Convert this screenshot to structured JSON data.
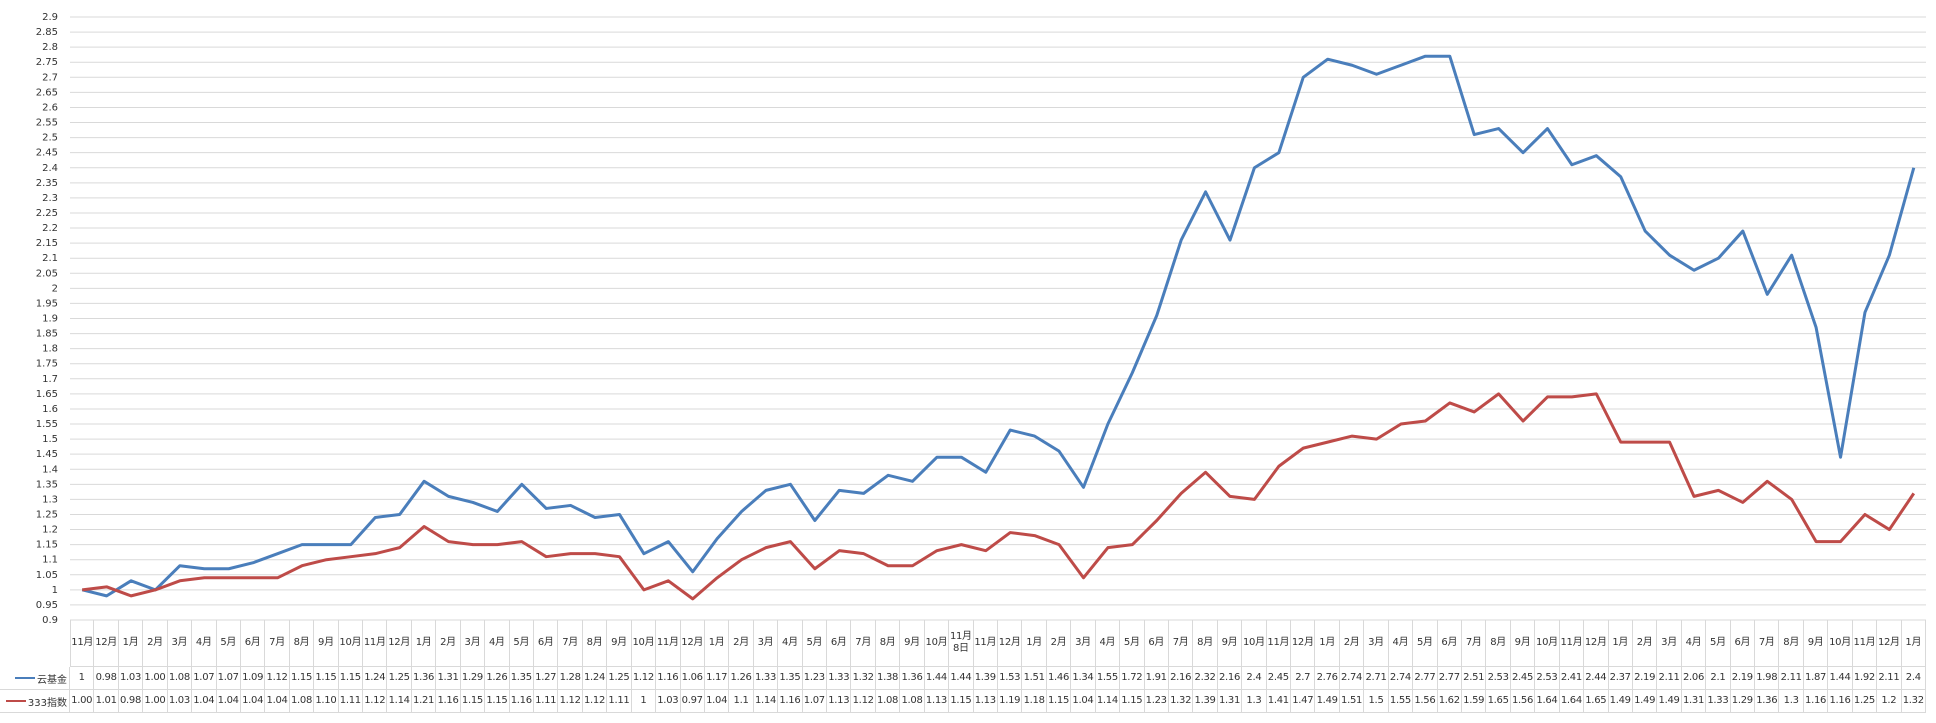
{
  "chart_data": {
    "type": "line",
    "categories": [
      "11月",
      "12月",
      "1月",
      "2月",
      "3月",
      "4月",
      "5月",
      "6月",
      "7月",
      "8月",
      "9月",
      "10月",
      "11月",
      "12月",
      "1月",
      "2月",
      "3月",
      "4月",
      "5月",
      "6月",
      "7月",
      "8月",
      "9月",
      "10月",
      "11月",
      "12月",
      "1月",
      "2月",
      "3月",
      "4月",
      "5月",
      "6月",
      "7月",
      "8月",
      "9月",
      "10月",
      "11月8日",
      "11月",
      "12月",
      "1月",
      "2月",
      "3月",
      "4月",
      "5月",
      "6月",
      "7月",
      "8月",
      "9月",
      "10月",
      "11月",
      "12月",
      "1月",
      "2月",
      "3月",
      "4月",
      "5月",
      "6月",
      "7月",
      "8月",
      "9月",
      "10月",
      "11月",
      "12月",
      "1月",
      "2月",
      "3月",
      "4月",
      "5月",
      "6月",
      "7月",
      "8月",
      "9月",
      "10月",
      "11月",
      "12月",
      "1月"
    ],
    "series": [
      {
        "name": "云基金",
        "color": "#4a7ebb",
        "values": [
          1,
          0.98,
          1.03,
          1.0,
          1.08,
          1.07,
          1.07,
          1.09,
          1.12,
          1.15,
          1.15,
          1.15,
          1.24,
          1.25,
          1.36,
          1.31,
          1.29,
          1.26,
          1.35,
          1.27,
          1.28,
          1.24,
          1.25,
          1.12,
          1.16,
          1.06,
          1.17,
          1.26,
          1.33,
          1.35,
          1.23,
          1.33,
          1.32,
          1.38,
          1.36,
          1.44,
          1.44,
          1.39,
          1.53,
          1.51,
          1.46,
          1.34,
          1.55,
          1.72,
          1.91,
          2.16,
          2.32,
          2.16,
          2.4,
          2.45,
          2.7,
          2.76,
          2.74,
          2.71,
          2.74,
          2.77,
          2.77,
          2.51,
          2.53,
          2.45,
          2.53,
          2.41,
          2.44,
          2.37,
          2.19,
          2.11,
          2.06,
          2.1,
          2.19,
          1.98,
          2.11,
          1.87,
          1.44,
          1.92,
          2.11,
          2.4
        ],
        "value_labels": [
          "1",
          "0.98",
          "1.03",
          "1.00",
          "1.08",
          "1.07",
          "1.07",
          "1.09",
          "1.12",
          "1.15",
          "1.15",
          "1.15",
          "1.24",
          "1.25",
          "1.36",
          "1.31",
          "1.29",
          "1.26",
          "1.35",
          "1.27",
          "1.28",
          "1.24",
          "1.25",
          "1.12",
          "1.16",
          "1.06",
          "1.17",
          "1.26",
          "1.33",
          "1.35",
          "1.23",
          "1.33",
          "1.32",
          "1.38",
          "1.36",
          "1.44",
          "1.44",
          "1.39",
          "1.53",
          "1.51",
          "1.46",
          "1.34",
          "1.55",
          "1.72",
          "1.91",
          "2.16",
          "2.32",
          "2.16",
          "2.4",
          "2.45",
          "2.7",
          "2.76",
          "2.74",
          "2.71",
          "2.74",
          "2.77",
          "2.77",
          "2.51",
          "2.53",
          "2.45",
          "2.53",
          "2.41",
          "2.44",
          "2.37",
          "2.19",
          "2.11",
          "2.06",
          "2.1",
          "2.19",
          "1.98",
          "2.11",
          "1.87",
          "1.44",
          "1.92",
          "2.11",
          "2.4"
        ]
      },
      {
        "name": "333指数",
        "color": "#be4b48",
        "values": [
          1.0,
          1.01,
          0.98,
          1.0,
          1.03,
          1.04,
          1.04,
          1.04,
          1.04,
          1.08,
          1.1,
          1.11,
          1.12,
          1.14,
          1.21,
          1.16,
          1.15,
          1.15,
          1.16,
          1.11,
          1.12,
          1.12,
          1.11,
          1,
          1.03,
          0.97,
          1.04,
          1.1,
          1.14,
          1.16,
          1.07,
          1.13,
          1.12,
          1.08,
          1.08,
          1.13,
          1.15,
          1.13,
          1.19,
          1.18,
          1.15,
          1.04,
          1.14,
          1.15,
          1.23,
          1.32,
          1.39,
          1.31,
          1.3,
          1.41,
          1.47,
          1.49,
          1.51,
          1.5,
          1.55,
          1.56,
          1.62,
          1.59,
          1.65,
          1.56,
          1.64,
          1.64,
          1.65,
          1.49,
          1.49,
          1.49,
          1.31,
          1.33,
          1.29,
          1.36,
          1.3,
          1.16,
          1.16,
          1.25,
          1.2,
          1.32
        ],
        "value_labels": [
          "1.00",
          "1.01",
          "0.98",
          "1.00",
          "1.03",
          "1.04",
          "1.04",
          "1.04",
          "1.04",
          "1.08",
          "1.10",
          "1.11",
          "1.12",
          "1.14",
          "1.21",
          "1.16",
          "1.15",
          "1.15",
          "1.16",
          "1.11",
          "1.12",
          "1.12",
          "1.11",
          "1",
          "1.03",
          "0.97",
          "1.04",
          "1.1",
          "1.14",
          "1.16",
          "1.07",
          "1.13",
          "1.12",
          "1.08",
          "1.08",
          "1.13",
          "1.15",
          "1.13",
          "1.19",
          "1.18",
          "1.15",
          "1.04",
          "1.14",
          "1.15",
          "1.23",
          "1.32",
          "1.39",
          "1.31",
          "1.3",
          "1.41",
          "1.47",
          "1.49",
          "1.51",
          "1.5",
          "1.55",
          "1.56",
          "1.62",
          "1.59",
          "1.65",
          "1.56",
          "1.64",
          "1.64",
          "1.65",
          "1.49",
          "1.49",
          "1.49",
          "1.31",
          "1.33",
          "1.29",
          "1.36",
          "1.3",
          "1.16",
          "1.16",
          "1.25",
          "1.2",
          "1.32"
        ]
      }
    ],
    "ylim": [
      0.9,
      2.9
    ],
    "yticks": [
      0.9,
      0.95,
      1,
      1.05,
      1.1,
      1.15,
      1.2,
      1.25,
      1.3,
      1.35,
      1.4,
      1.45,
      1.5,
      1.55,
      1.6,
      1.65,
      1.7,
      1.75,
      1.8,
      1.85,
      1.9,
      1.95,
      2,
      2.05,
      2.1,
      2.15,
      2.2,
      2.25,
      2.3,
      2.35,
      2.4,
      2.45,
      2.5,
      2.55,
      2.6,
      2.65,
      2.7,
      2.75,
      2.8,
      2.85,
      2.9
    ],
    "grid": true
  }
}
